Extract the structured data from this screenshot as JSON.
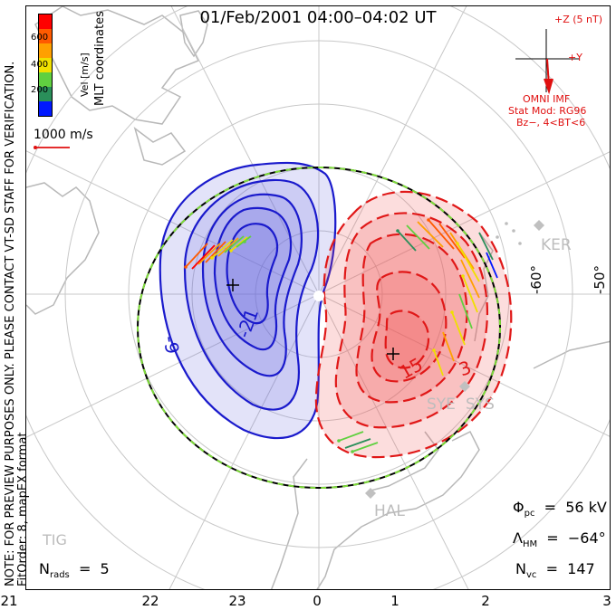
{
  "title": "01/Feb/2001 04:00–04:02 UT",
  "coordinate_label": "MLT coordinates",
  "vel_label": "Vel [m/s]",
  "colorbar": {
    "ticks": [
      "600",
      "400",
      "200"
    ],
    "colors": [
      "#ff0000",
      "#ff5a00",
      "#ffa000",
      "#f0e000",
      "#60d040",
      "#2a8f5a",
      "#0018ff"
    ]
  },
  "vector_scale": "1000 m/s",
  "side_note": "NOTE: FOR PREVIEW PURPOSES ONLY. PLEASE CONTACT VT-SD STAFF FOR VERIFICATION.",
  "fit_order": "FitOrder: 8,  mapEX format",
  "imf": {
    "z_label": "+Z (5 nT)",
    "y_label": "+Y",
    "source": "OMNI IMF",
    "stat_mod": "Stat Mod: RG96",
    "condition": "Bz−, 4<BT<6"
  },
  "lat_labels": [
    "-60°",
    "-50°"
  ],
  "stations": [
    "KER",
    "SYE",
    "SYS",
    "HAL",
    "TIG"
  ],
  "contour_labels": {
    "neg": [
      "-9",
      "-21"
    ],
    "pos": [
      "15",
      "3"
    ]
  },
  "mlt_ticks": [
    "21",
    "22",
    "23",
    "0",
    "1",
    "2",
    "3"
  ],
  "stats": {
    "phi_pc": "56 kV",
    "lambda_hm": "−64°",
    "n_vc": "147",
    "n_rads": "5"
  },
  "colors": {
    "negative_contour": "#1a1acc",
    "positive_contour": "#e01818",
    "neg_fill": "#6666dd",
    "pos_fill": "#ee5555",
    "grid": "#c8c8c8",
    "coast": "#b8b8b8"
  }
}
